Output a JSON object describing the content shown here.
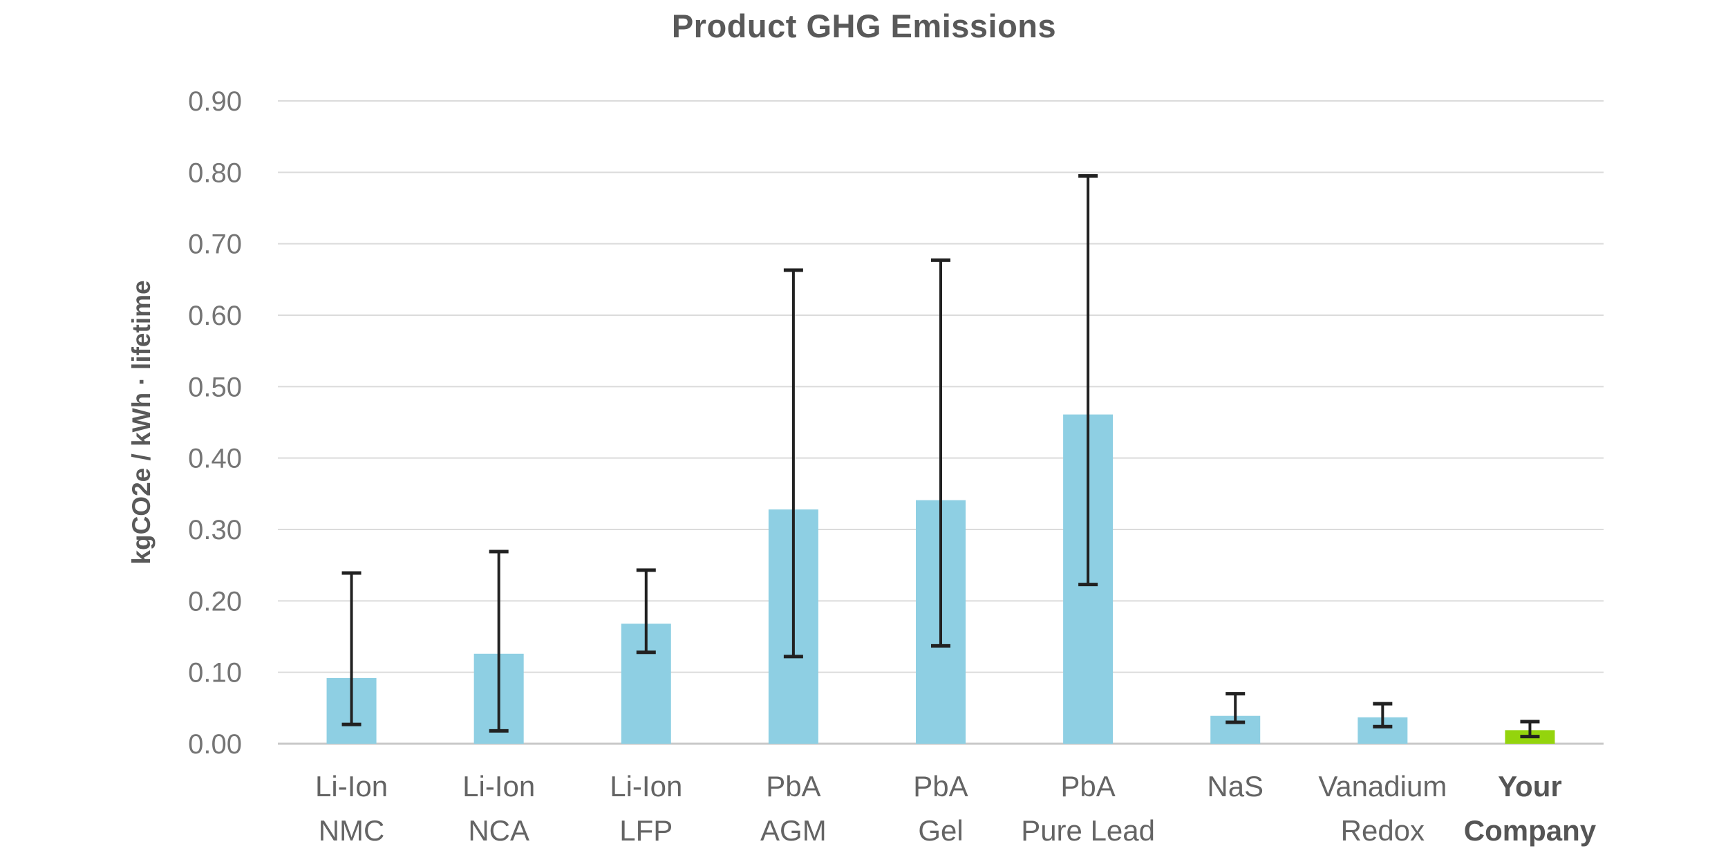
{
  "chart_data": {
    "type": "bar",
    "title": "Product GHG Emissions",
    "ylabel": "kgCO2e / kWh · lifetime",
    "ylim": [
      0,
      0.9
    ],
    "ytick_step": 0.1,
    "yticks": [
      "0.00",
      "0.10",
      "0.20",
      "0.30",
      "0.40",
      "0.50",
      "0.60",
      "0.70",
      "0.80",
      "0.90"
    ],
    "grid": true,
    "legend": "none",
    "categories": [
      "Li-Ion\nNMC",
      "Li-Ion\nNCA",
      "Li-Ion\nLFP",
      "PbA\nAGM",
      "PbA\nGel",
      "PbA\nPure Lead",
      "NaS",
      "Vanadium\nRedox",
      "Your\nCompany"
    ],
    "values": [
      0.092,
      0.126,
      0.168,
      0.328,
      0.341,
      0.461,
      0.039,
      0.037,
      0.019
    ],
    "error_low": [
      0.027,
      0.018,
      0.128,
      0.122,
      0.137,
      0.223,
      0.03,
      0.024,
      0.01
    ],
    "error_high": [
      0.239,
      0.269,
      0.243,
      0.663,
      0.677,
      0.795,
      0.07,
      0.056,
      0.031
    ],
    "highlight_index": 8,
    "colors": {
      "bar": "#8ECFE3",
      "highlight_bar": "#94D40D",
      "grid": "#DBDBDB",
      "baseline": "#C8C8C8",
      "error": "#212121",
      "tick_text": "#757575",
      "category_text": "#646464",
      "highlight_category_text": "#555555",
      "title_text": "#595959"
    }
  }
}
